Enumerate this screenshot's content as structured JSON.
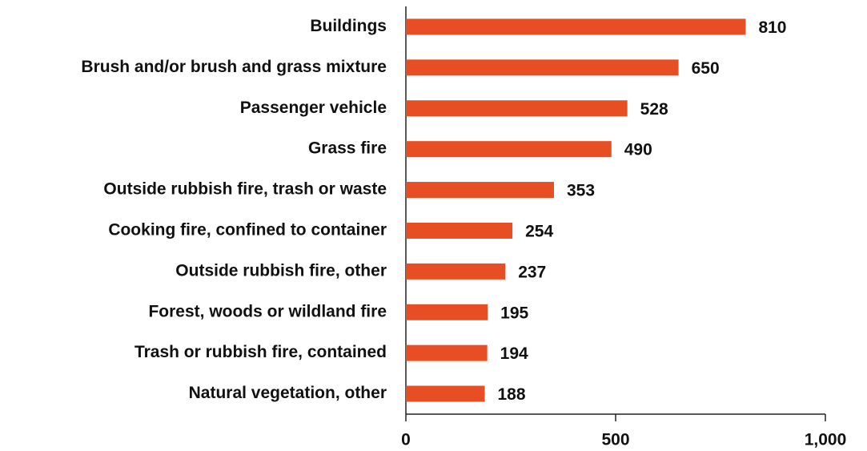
{
  "chart_data": {
    "type": "bar",
    "orientation": "horizontal",
    "categories": [
      "Buildings",
      "Brush and/or brush and grass mixture",
      "Passenger vehicle",
      "Grass fire",
      "Outside rubbish fire, trash or waste",
      "Cooking fire, confined to container",
      "Outside rubbish fire, other",
      "Forest, woods or wildland fire",
      "Trash or rubbish fire, contained",
      "Natural vegetation, other"
    ],
    "values": [
      810,
      650,
      528,
      490,
      353,
      254,
      237,
      195,
      194,
      188
    ],
    "color": "#e84e23",
    "xlim": [
      0,
      1000
    ],
    "xticks": [
      0,
      500,
      {
        "value": 1000,
        "label": "1,000"
      }
    ],
    "grid": false
  }
}
